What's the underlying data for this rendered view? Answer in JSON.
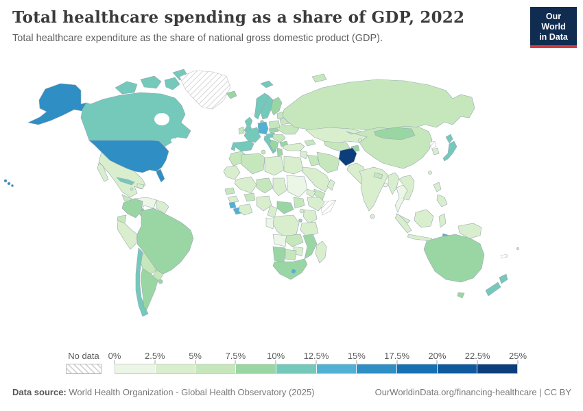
{
  "header": {
    "title": "Total healthcare spending as a share of GDP, 2022",
    "subtitle": "Total healthcare expenditure as the share of national gross domestic product (GDP)."
  },
  "logo": {
    "line1": "Our World",
    "line2": "in Data",
    "bg_color": "#112c51",
    "accent_color": "#d3393c"
  },
  "legend": {
    "no_data_label": "No data",
    "ticks": [
      "0%",
      "2.5%",
      "5%",
      "7.5%",
      "10%",
      "12.5%",
      "15%",
      "17.5%",
      "20%",
      "22.5%",
      "25%"
    ]
  },
  "footer": {
    "source_label": "Data source:",
    "source_text": "World Health Organization - Global Health Observatory (2025)",
    "attribution": "OurWorldinData.org/financing-healthcare | CC BY"
  },
  "chart_data": {
    "type": "heatmap",
    "subtype": "world-choropleth",
    "title": "Total healthcare spending as a share of GDP, 2022",
    "unit": "% of GDP",
    "legend_position": "bottom",
    "bin_size": 2.5,
    "bin_edges": [
      0,
      2.5,
      5,
      7.5,
      10,
      12.5,
      15,
      17.5,
      20,
      22.5,
      25
    ],
    "colors": [
      "#ecf6e6",
      "#d9eecd",
      "#c6e7bc",
      "#9ad6a3",
      "#74c9bb",
      "#51b1d4",
      "#2f8ec4",
      "#1571b2",
      "#0f5a9c",
      "#0d3e7c"
    ],
    "no_data_style": "gray-hatch",
    "border_color": "#99a8b2",
    "countries": [
      {
        "id": "usa",
        "name": "United States",
        "value": 16.6
      },
      {
        "id": "canada",
        "name": "Canada",
        "value": 11.2
      },
      {
        "id": "greenland",
        "name": "Greenland",
        "value": null
      },
      {
        "id": "mexico",
        "name": "Mexico",
        "value": 4.1
      },
      {
        "id": "guatemala",
        "name": "Guatemala",
        "value": 6.8
      },
      {
        "id": "honduras-nicaragua",
        "name": "Honduras/Nicaragua",
        "value": 8.6
      },
      {
        "id": "costa-rica-panama",
        "name": "Costa Rica/Panama",
        "value": 8.8
      },
      {
        "id": "cuba",
        "name": "Cuba",
        "value": 11.3
      },
      {
        "id": "hispaniola",
        "name": "Dominican Republic/Haiti",
        "value": 4.5
      },
      {
        "id": "jamaica",
        "name": "Jamaica",
        "value": 6.1
      },
      {
        "id": "colombia",
        "name": "Colombia",
        "value": 8.6
      },
      {
        "id": "venezuela",
        "name": "Venezuela",
        "value": 2.3
      },
      {
        "id": "guyanas",
        "name": "Guyana/Suriname",
        "value": 4.0
      },
      {
        "id": "ecuador",
        "name": "Ecuador",
        "value": 7.3
      },
      {
        "id": "peru",
        "name": "Peru",
        "value": 4.6
      },
      {
        "id": "brazil",
        "name": "Brazil",
        "value": 9.9
      },
      {
        "id": "bolivia",
        "name": "Bolivia",
        "value": 7.0
      },
      {
        "id": "paraguay",
        "name": "Paraguay",
        "value": 7.3
      },
      {
        "id": "chile",
        "name": "Chile",
        "value": 10.1
      },
      {
        "id": "argentina",
        "name": "Argentina",
        "value": 9.6
      },
      {
        "id": "uruguay",
        "name": "Uruguay",
        "value": 9.4
      },
      {
        "id": "iceland",
        "name": "Iceland",
        "value": 8.6
      },
      {
        "id": "uk",
        "name": "United Kingdom",
        "value": 11.3
      },
      {
        "id": "ireland",
        "name": "Ireland",
        "value": 6.7
      },
      {
        "id": "norway",
        "name": "Norway",
        "value": 10.1
      },
      {
        "id": "sweden",
        "name": "Sweden",
        "value": 10.7
      },
      {
        "id": "finland",
        "name": "Finland",
        "value": 9.8
      },
      {
        "id": "denmark",
        "name": "Denmark",
        "value": 9.3
      },
      {
        "id": "germany",
        "name": "Germany",
        "value": 12.6
      },
      {
        "id": "france",
        "name": "France",
        "value": 12.1
      },
      {
        "id": "spain",
        "name": "Spain",
        "value": 10.5
      },
      {
        "id": "portugal",
        "name": "Portugal",
        "value": 10.6
      },
      {
        "id": "italy",
        "name": "Italy",
        "value": 10.1
      },
      {
        "id": "switzerland-austria",
        "name": "Switzerland/Austria",
        "value": 11.5
      },
      {
        "id": "czech-slovakia",
        "name": "Czechia/Slovakia",
        "value": 8.8
      },
      {
        "id": "poland",
        "name": "Poland",
        "value": 6.7
      },
      {
        "id": "baltics",
        "name": "Baltic states",
        "value": 7.0
      },
      {
        "id": "belarus",
        "name": "Belarus",
        "value": 6.0
      },
      {
        "id": "ukraine",
        "name": "Ukraine",
        "value": 6.9
      },
      {
        "id": "romania-hungary",
        "name": "Romania/Hungary",
        "value": 6.6
      },
      {
        "id": "balkans",
        "name": "Western Balkans",
        "value": 8.4
      },
      {
        "id": "greece",
        "name": "Greece",
        "value": 8.6
      },
      {
        "id": "bulgaria",
        "name": "Bulgaria",
        "value": 8.5
      },
      {
        "id": "russia",
        "name": "Russia",
        "value": 7.4
      },
      {
        "id": "turkey",
        "name": "Turkey",
        "value": 4.3
      },
      {
        "id": "caucasus",
        "name": "Caucasus",
        "value": 7.0
      },
      {
        "id": "levant",
        "name": "Levant",
        "value": 4.8
      },
      {
        "id": "iraq",
        "name": "Iraq",
        "value": 5.1
      },
      {
        "id": "iran",
        "name": "Iran",
        "value": 5.3
      },
      {
        "id": "saudi-arabia",
        "name": "Saudi Arabia",
        "value": 4.4
      },
      {
        "id": "yemen",
        "name": "Yemen",
        "value": 5.2
      },
      {
        "id": "oman",
        "name": "Oman",
        "value": 4.2
      },
      {
        "id": "kazakhstan",
        "name": "Kazakhstan",
        "value": 3.9
      },
      {
        "id": "uzbekistan-turkmenistan",
        "name": "Uzbekistan/Turkmenistan",
        "value": 6.8
      },
      {
        "id": "kyrgyzstan",
        "name": "Kyrgyzstan",
        "value": 4.5
      },
      {
        "id": "tajikistan",
        "name": "Tajikistan",
        "value": 8.0
      },
      {
        "id": "afghanistan",
        "name": "Afghanistan",
        "value": 23.0
      },
      {
        "id": "pakistan",
        "name": "Pakistan",
        "value": 2.9
      },
      {
        "id": "india",
        "name": "India",
        "value": 3.3
      },
      {
        "id": "nepal",
        "name": "Nepal",
        "value": 5.3
      },
      {
        "id": "bangladesh",
        "name": "Bangladesh",
        "value": 2.4
      },
      {
        "id": "sri-lanka",
        "name": "Sri Lanka",
        "value": 3.9
      },
      {
        "id": "china",
        "name": "China",
        "value": 5.4
      },
      {
        "id": "mongolia",
        "name": "Mongolia",
        "value": 7.9
      },
      {
        "id": "north-korea",
        "name": "North Korea",
        "value": null
      },
      {
        "id": "south-korea",
        "name": "South Korea",
        "value": 4.3
      },
      {
        "id": "japan",
        "name": "Japan",
        "value": 11.5
      },
      {
        "id": "taiwan",
        "name": "Taiwan",
        "value": 4.0
      },
      {
        "id": "myanmar",
        "name": "Myanmar",
        "value": 3.8
      },
      {
        "id": "thailand",
        "name": "Thailand",
        "value": 2.4
      },
      {
        "id": "vietnam-laos-cambodia",
        "name": "Vietnam/Laos/Cambodia",
        "value": 4.3
      },
      {
        "id": "malaysia",
        "name": "Malaysia",
        "value": 4.4
      },
      {
        "id": "indonesia",
        "name": "Indonesia",
        "value": 3.0
      },
      {
        "id": "philippines",
        "name": "Philippines",
        "value": 4.6
      },
      {
        "id": "new-guinea",
        "name": "New Guinea",
        "value": 2.6
      },
      {
        "id": "timor-leste",
        "name": "Timor-Leste",
        "value": 13.0
      },
      {
        "id": "morocco",
        "name": "Morocco",
        "value": 5.8
      },
      {
        "id": "mauritania",
        "name": "Mauritania/W. Sahara",
        "value": 3.3
      },
      {
        "id": "algeria",
        "name": "Algeria",
        "value": 5.5
      },
      {
        "id": "tunisia",
        "name": "Tunisia",
        "value": 6.8
      },
      {
        "id": "libya",
        "name": "Libya",
        "value": 4.5
      },
      {
        "id": "egypt",
        "name": "Egypt",
        "value": 4.2
      },
      {
        "id": "mali",
        "name": "Mali",
        "value": 4.0
      },
      {
        "id": "niger",
        "name": "Niger",
        "value": 5.6
      },
      {
        "id": "chad",
        "name": "Chad",
        "value": 4.0
      },
      {
        "id": "sudan",
        "name": "Sudan",
        "value": 2.3
      },
      {
        "id": "eritrea",
        "name": "Eritrea/Djibouti",
        "value": 4.1
      },
      {
        "id": "ethiopia",
        "name": "Ethiopia",
        "value": 3.5
      },
      {
        "id": "somalia",
        "name": "Somalia",
        "value": null
      },
      {
        "id": "senegal",
        "name": "Senegal",
        "value": 5.2
      },
      {
        "id": "guinea",
        "name": "Guinea",
        "value": 4.0
      },
      {
        "id": "sierra-leone",
        "name": "Sierra Leone",
        "value": 13.5
      },
      {
        "id": "liberia",
        "name": "Liberia",
        "value": 13.2
      },
      {
        "id": "cote-divoire-ghana",
        "name": "Côte d'Ivoire/Ghana",
        "value": 4.0
      },
      {
        "id": "burkina-faso",
        "name": "Burkina Faso",
        "value": 6.5
      },
      {
        "id": "nigeria",
        "name": "Nigeria",
        "value": 3.8
      },
      {
        "id": "cameroon",
        "name": "Cameroon",
        "value": 3.9
      },
      {
        "id": "central-african-republic",
        "name": "Central African Republic",
        "value": 7.8
      },
      {
        "id": "south-sudan",
        "name": "South Sudan",
        "value": 5.4
      },
      {
        "id": "gabon-congo",
        "name": "Gabon/Congo",
        "value": 2.4
      },
      {
        "id": "drc",
        "name": "DR Congo",
        "value": 4.0
      },
      {
        "id": "uganda",
        "name": "Uganda",
        "value": 3.8
      },
      {
        "id": "kenya",
        "name": "Kenya",
        "value": 4.5
      },
      {
        "id": "rwanda-burundi",
        "name": "Rwanda/Burundi",
        "value": 7.8
      },
      {
        "id": "tanzania",
        "name": "Tanzania",
        "value": 3.7
      },
      {
        "id": "angola",
        "name": "Angola",
        "value": 2.4
      },
      {
        "id": "zambia",
        "name": "Zambia",
        "value": 5.3
      },
      {
        "id": "mozambique-malawi",
        "name": "Mozambique/Malawi",
        "value": 8.0
      },
      {
        "id": "zimbabwe",
        "name": "Zimbabwe",
        "value": 3.4
      },
      {
        "id": "namibia",
        "name": "Namibia",
        "value": 8.5
      },
      {
        "id": "botswana",
        "name": "Botswana",
        "value": 6.1
      },
      {
        "id": "south-africa",
        "name": "South Africa",
        "value": 8.6
      },
      {
        "id": "lesotho",
        "name": "Lesotho",
        "value": 13.0
      },
      {
        "id": "madagascar",
        "name": "Madagascar",
        "value": 3.9
      },
      {
        "id": "australia",
        "name": "Australia",
        "value": 9.9
      },
      {
        "id": "new-zealand",
        "name": "New Zealand",
        "value": 10.2
      },
      {
        "id": "new-caledonia",
        "name": "New Caledonia",
        "value": null
      },
      {
        "id": "fiji",
        "name": "Fiji",
        "value": 6.9
      }
    ]
  }
}
